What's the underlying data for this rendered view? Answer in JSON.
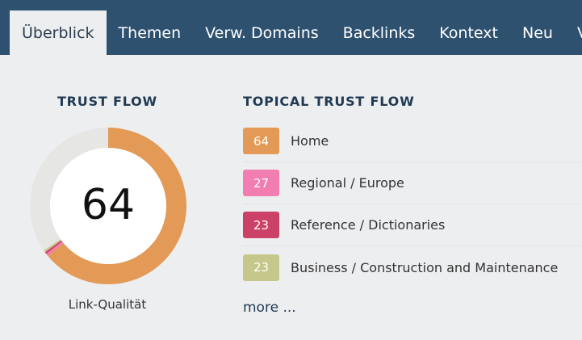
{
  "tabs": [
    {
      "label": "Überblick",
      "active": true
    },
    {
      "label": "Themen",
      "active": false
    },
    {
      "label": "Verw. Domains",
      "active": false
    },
    {
      "label": "Backlinks",
      "active": false
    },
    {
      "label": "Kontext",
      "active": false
    },
    {
      "label": "Neu",
      "active": false
    },
    {
      "label": "V",
      "active": false
    }
  ],
  "trust_flow": {
    "title": "TRUST FLOW",
    "value": "64",
    "score": 64,
    "caption": "Link-Qualität",
    "segments": [
      {
        "value": 64,
        "color": "#e39a56"
      },
      {
        "value": 0.5,
        "color": "#f27db0"
      },
      {
        "value": 0.4,
        "color": "#cb4168"
      },
      {
        "value": 0.4,
        "color": "#c5c88a"
      }
    ],
    "remainder_color": "#e6e6e4"
  },
  "topical_trust_flow": {
    "title": "TOPICAL TRUST FLOW",
    "items": [
      {
        "value": "64",
        "label": "Home",
        "color": "#e39a56"
      },
      {
        "value": "27",
        "label": "Regional / Europe",
        "color": "#f27db0"
      },
      {
        "value": "23",
        "label": "Reference / Dictionaries",
        "color": "#cb4168"
      },
      {
        "value": "23",
        "label": "Business / Construction and Maintenance",
        "color": "#c5c88a"
      }
    ],
    "more_label": "more ..."
  }
}
